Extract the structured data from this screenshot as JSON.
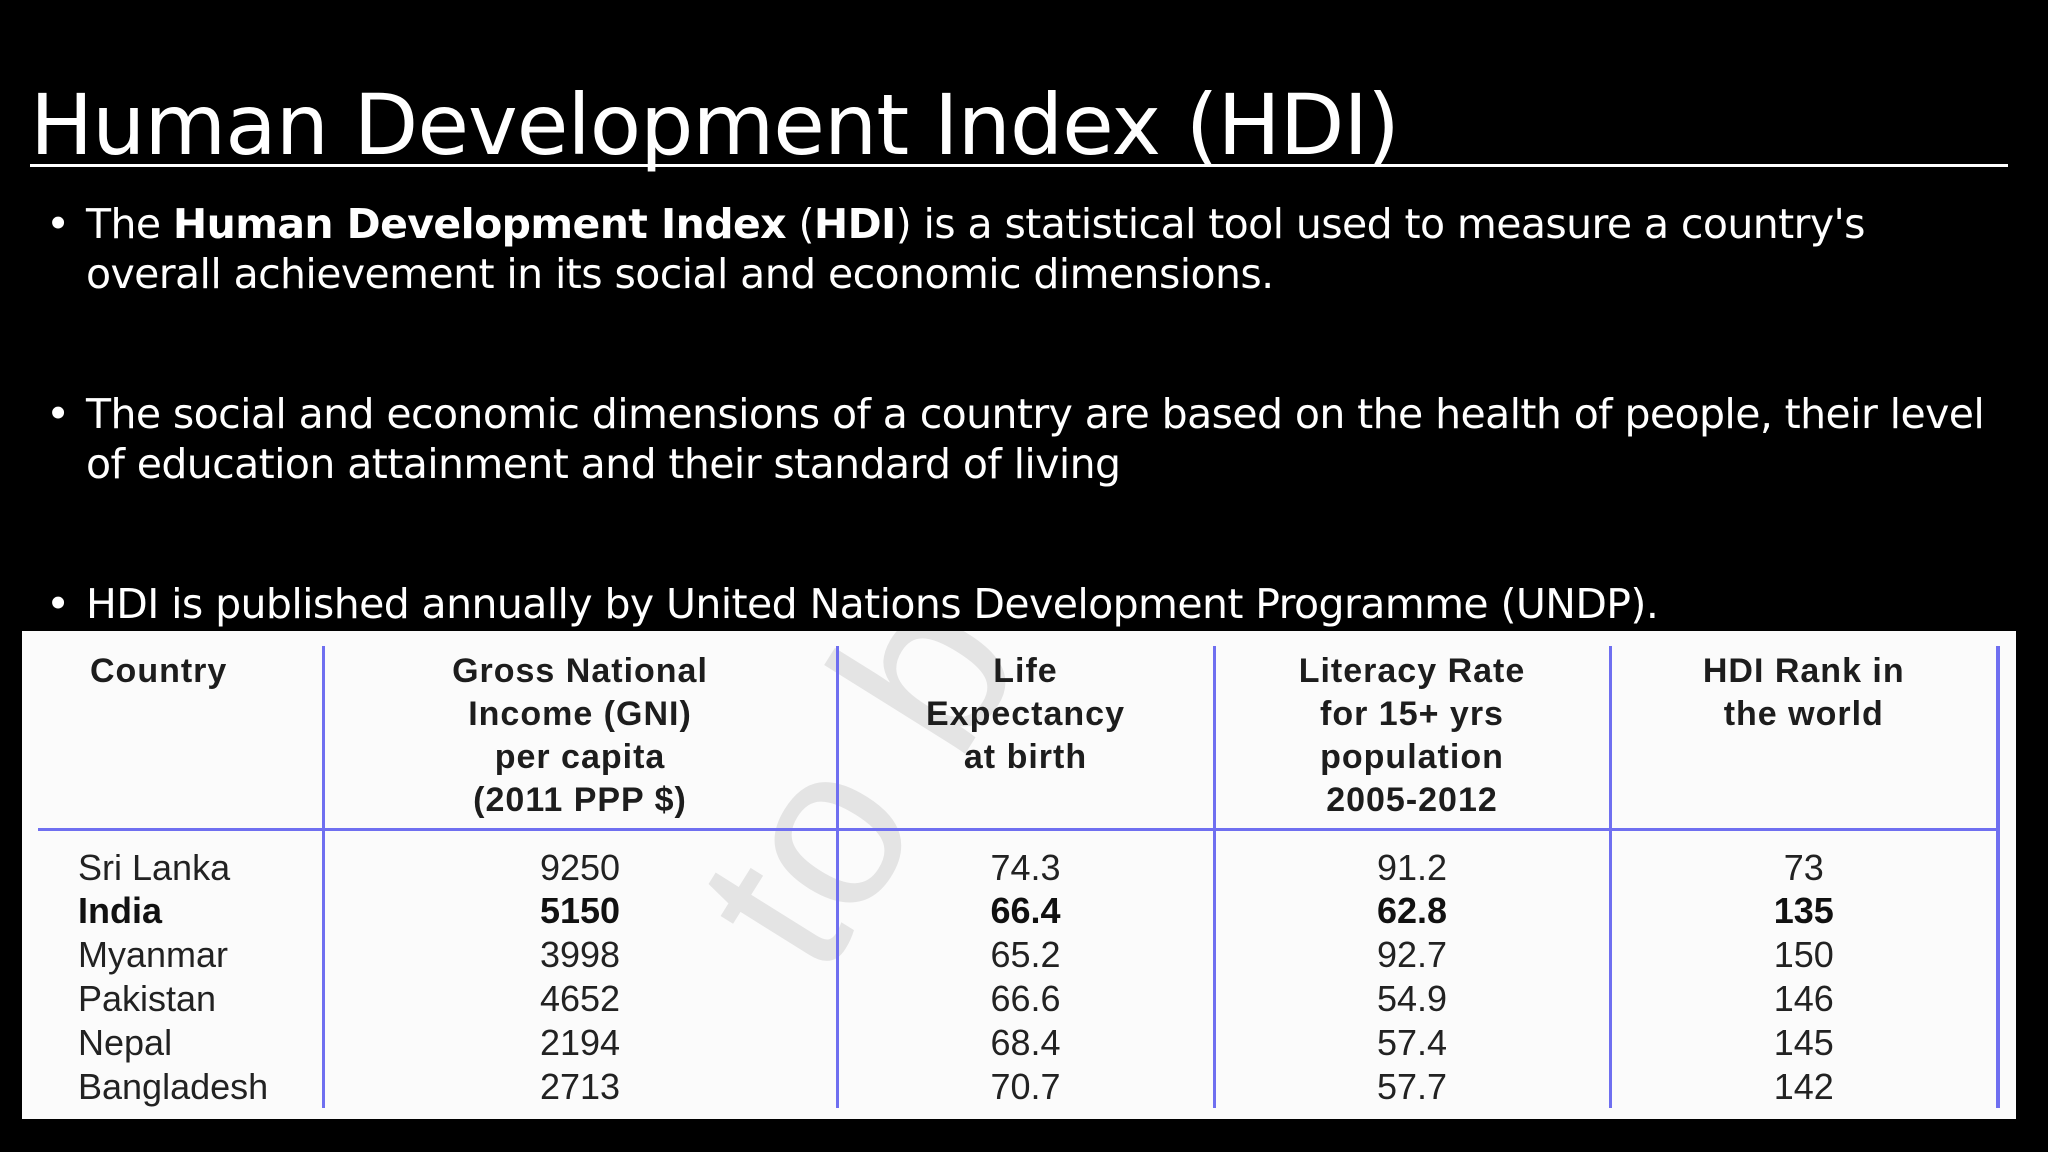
{
  "title": "Human Development Index (HDI)",
  "bullets": [
    {
      "bullet_char": "•",
      "parts": [
        "The ",
        "Human Development Index",
        " (",
        "HDI",
        ") is a statistical tool used to measure a country's overall achievement in its social and economic dimensions."
      ]
    },
    {
      "bullet_char": "•",
      "text": "The social and economic dimensions of a country are based on the health of people, their level of education attainment and their standard of living"
    },
    {
      "bullet_char": "•",
      "text": "HDI is published annually by United Nations Development Programme (UNDP)."
    }
  ],
  "table": {
    "headers": [
      [
        "Country"
      ],
      [
        "Gross National",
        "Income (GNI)",
        "per capita",
        "(2011 PPP $)"
      ],
      [
        "Life",
        "Expectancy",
        "at birth"
      ],
      [
        "Literacy Rate",
        "for 15+ yrs",
        "population",
        "2005-2012"
      ],
      [
        "HDI Rank in",
        "the world"
      ]
    ],
    "rows": [
      {
        "country": "Sri Lanka",
        "gni": "9250",
        "life": "74.3",
        "literacy": "91.2",
        "rank": "73",
        "bold": false
      },
      {
        "country": "India",
        "gni": "5150",
        "life": "66.4",
        "literacy": "62.8",
        "rank": "135",
        "bold": true
      },
      {
        "country": "Myanmar",
        "gni": "3998",
        "life": "65.2",
        "literacy": "92.7",
        "rank": "150",
        "bold": false
      },
      {
        "country": "Pakistan",
        "gni": "4652",
        "life": "66.6",
        "literacy": "54.9",
        "rank": "146",
        "bold": false
      },
      {
        "country": "Nepal",
        "gni": "2194",
        "life": "68.4",
        "literacy": "57.4",
        "rank": "145",
        "bold": false
      },
      {
        "country": "Bangladesh",
        "gni": "2713",
        "life": "70.7",
        "literacy": "57.7",
        "rank": "142",
        "bold": false
      }
    ],
    "watermark": "to be"
  },
  "colors": {
    "background": "#000000",
    "text": "#ffffff",
    "table_background": "#fbfbfb",
    "table_rule": "#6f6ff0"
  }
}
